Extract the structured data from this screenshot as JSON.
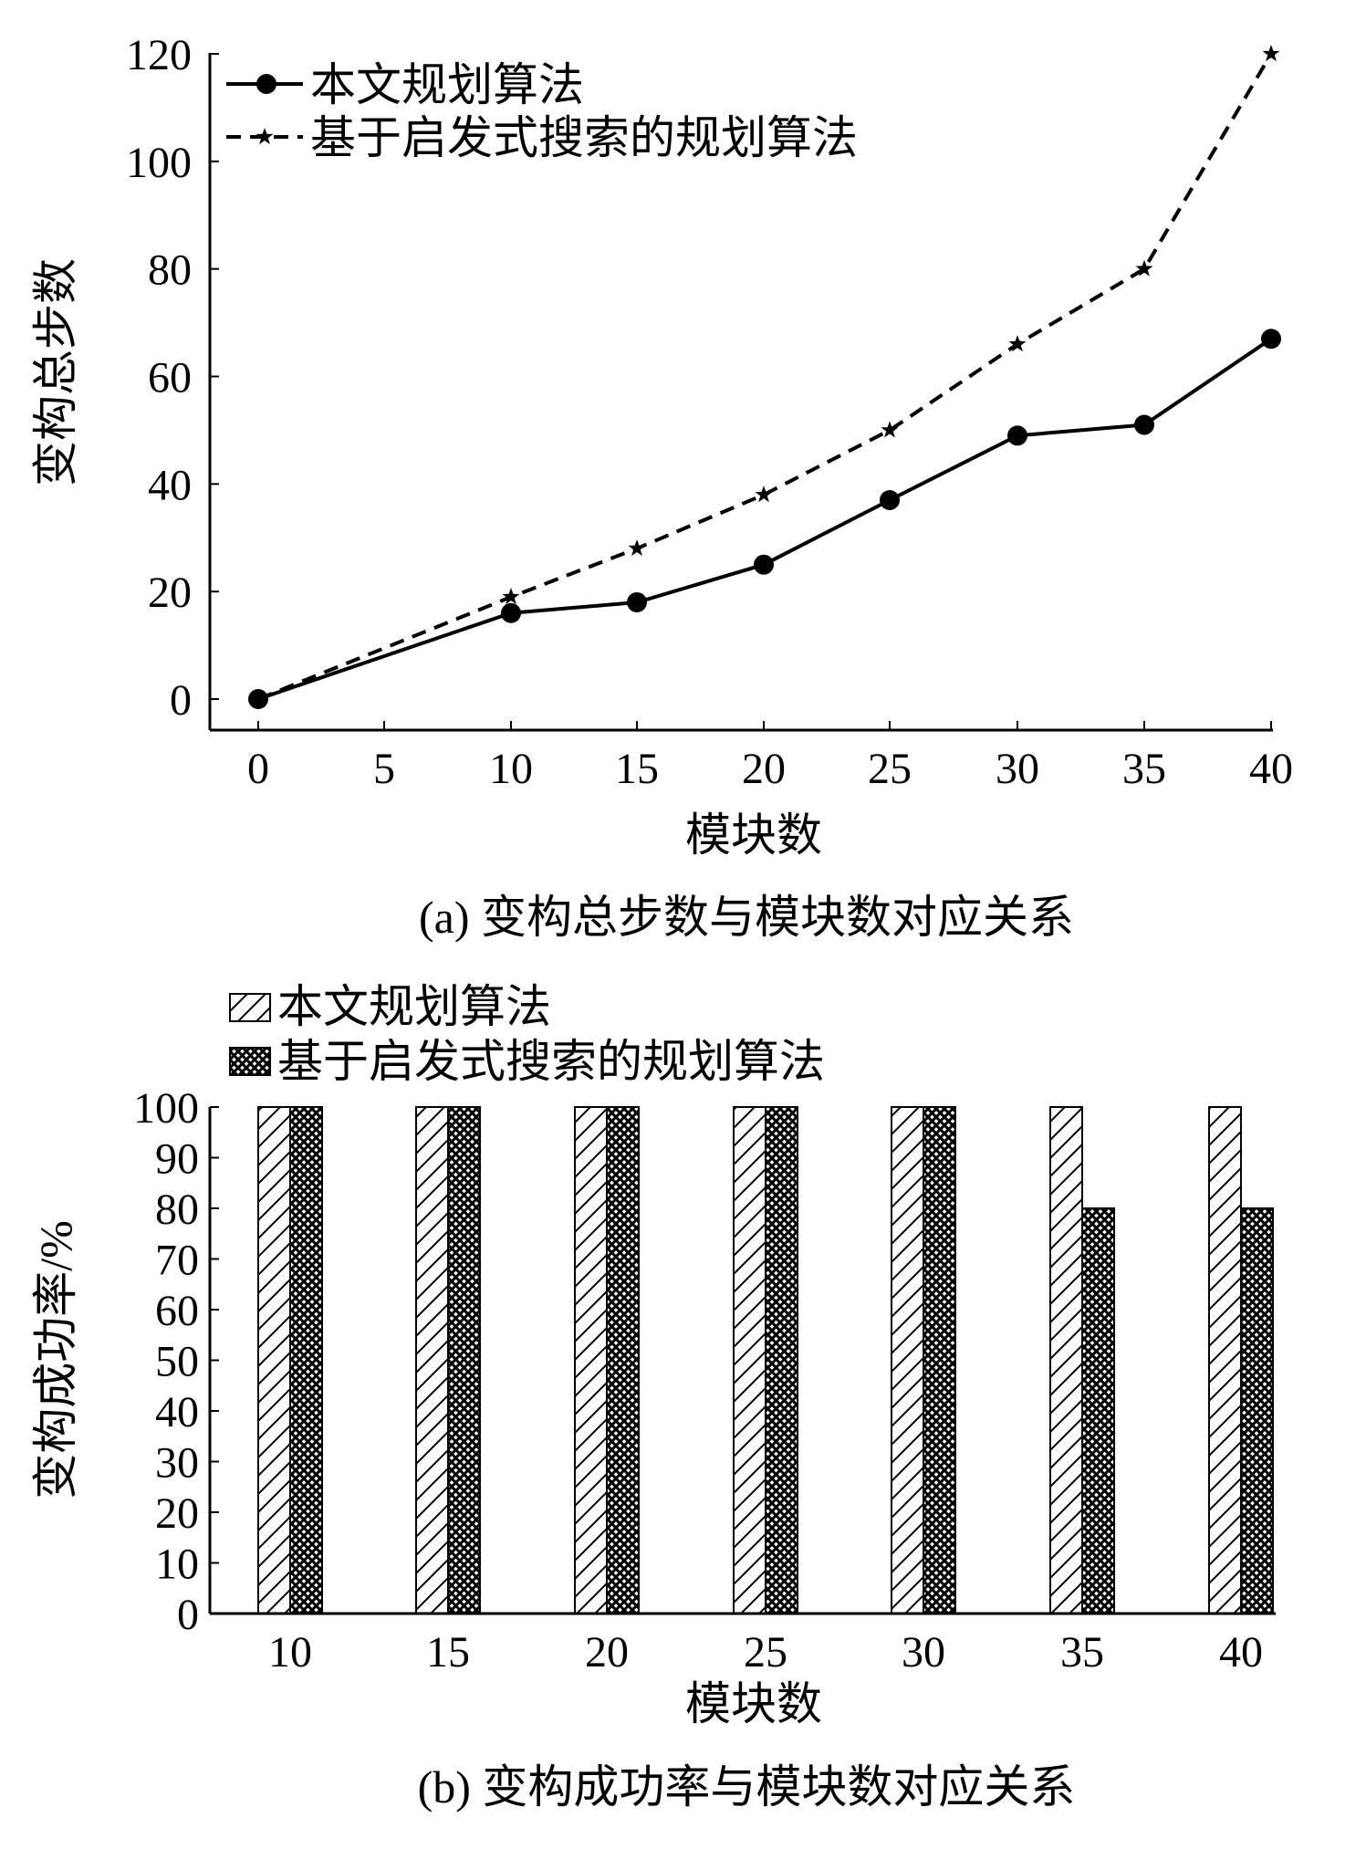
{
  "chart_data": [
    {
      "type": "line",
      "caption": "(a) 变构总步数与模块数对应关系",
      "xlabel": "模块数",
      "ylabel": "变构总步数",
      "x_ticks": [
        "0",
        "5",
        "10",
        "15",
        "20",
        "25",
        "30",
        "35",
        "40"
      ],
      "y_ticks": [
        "0",
        "20",
        "40",
        "60",
        "80",
        "100",
        "120"
      ],
      "ylim": [
        0,
        120
      ],
      "grid": false,
      "legend_position": "top-left",
      "series": [
        {
          "name": "本文规划算法",
          "marker": "circle",
          "line": "solid",
          "x": [
            0,
            10,
            15,
            20,
            25,
            30,
            35,
            40
          ],
          "values": [
            0,
            16,
            18,
            25,
            37,
            49,
            51,
            67
          ]
        },
        {
          "name": "基于启发式搜索的规划算法",
          "marker": "star",
          "line": "dashed",
          "x": [
            0,
            10,
            15,
            20,
            25,
            30,
            35,
            40
          ],
          "values": [
            0,
            19,
            28,
            38,
            50,
            66,
            80,
            120
          ]
        }
      ]
    },
    {
      "type": "bar",
      "caption": "(b) 变构成功率与模块数对应关系",
      "xlabel": "模块数",
      "ylabel": "变构成功率/%",
      "categories": [
        "10",
        "15",
        "20",
        "25",
        "30",
        "35",
        "40"
      ],
      "y_ticks": [
        "0",
        "10",
        "20",
        "30",
        "40",
        "50",
        "60",
        "70",
        "80",
        "90",
        "100"
      ],
      "ylim": [
        0,
        100
      ],
      "grid": false,
      "legend_position": "top-left",
      "series": [
        {
          "name": "本文规划算法",
          "pattern": "diagonal-hatch",
          "values": [
            100,
            100,
            100,
            100,
            100,
            100,
            100
          ]
        },
        {
          "name": "基于启发式搜索的规划算法",
          "pattern": "crosshatch",
          "values": [
            100,
            100,
            100,
            100,
            100,
            80,
            80
          ]
        }
      ]
    }
  ]
}
